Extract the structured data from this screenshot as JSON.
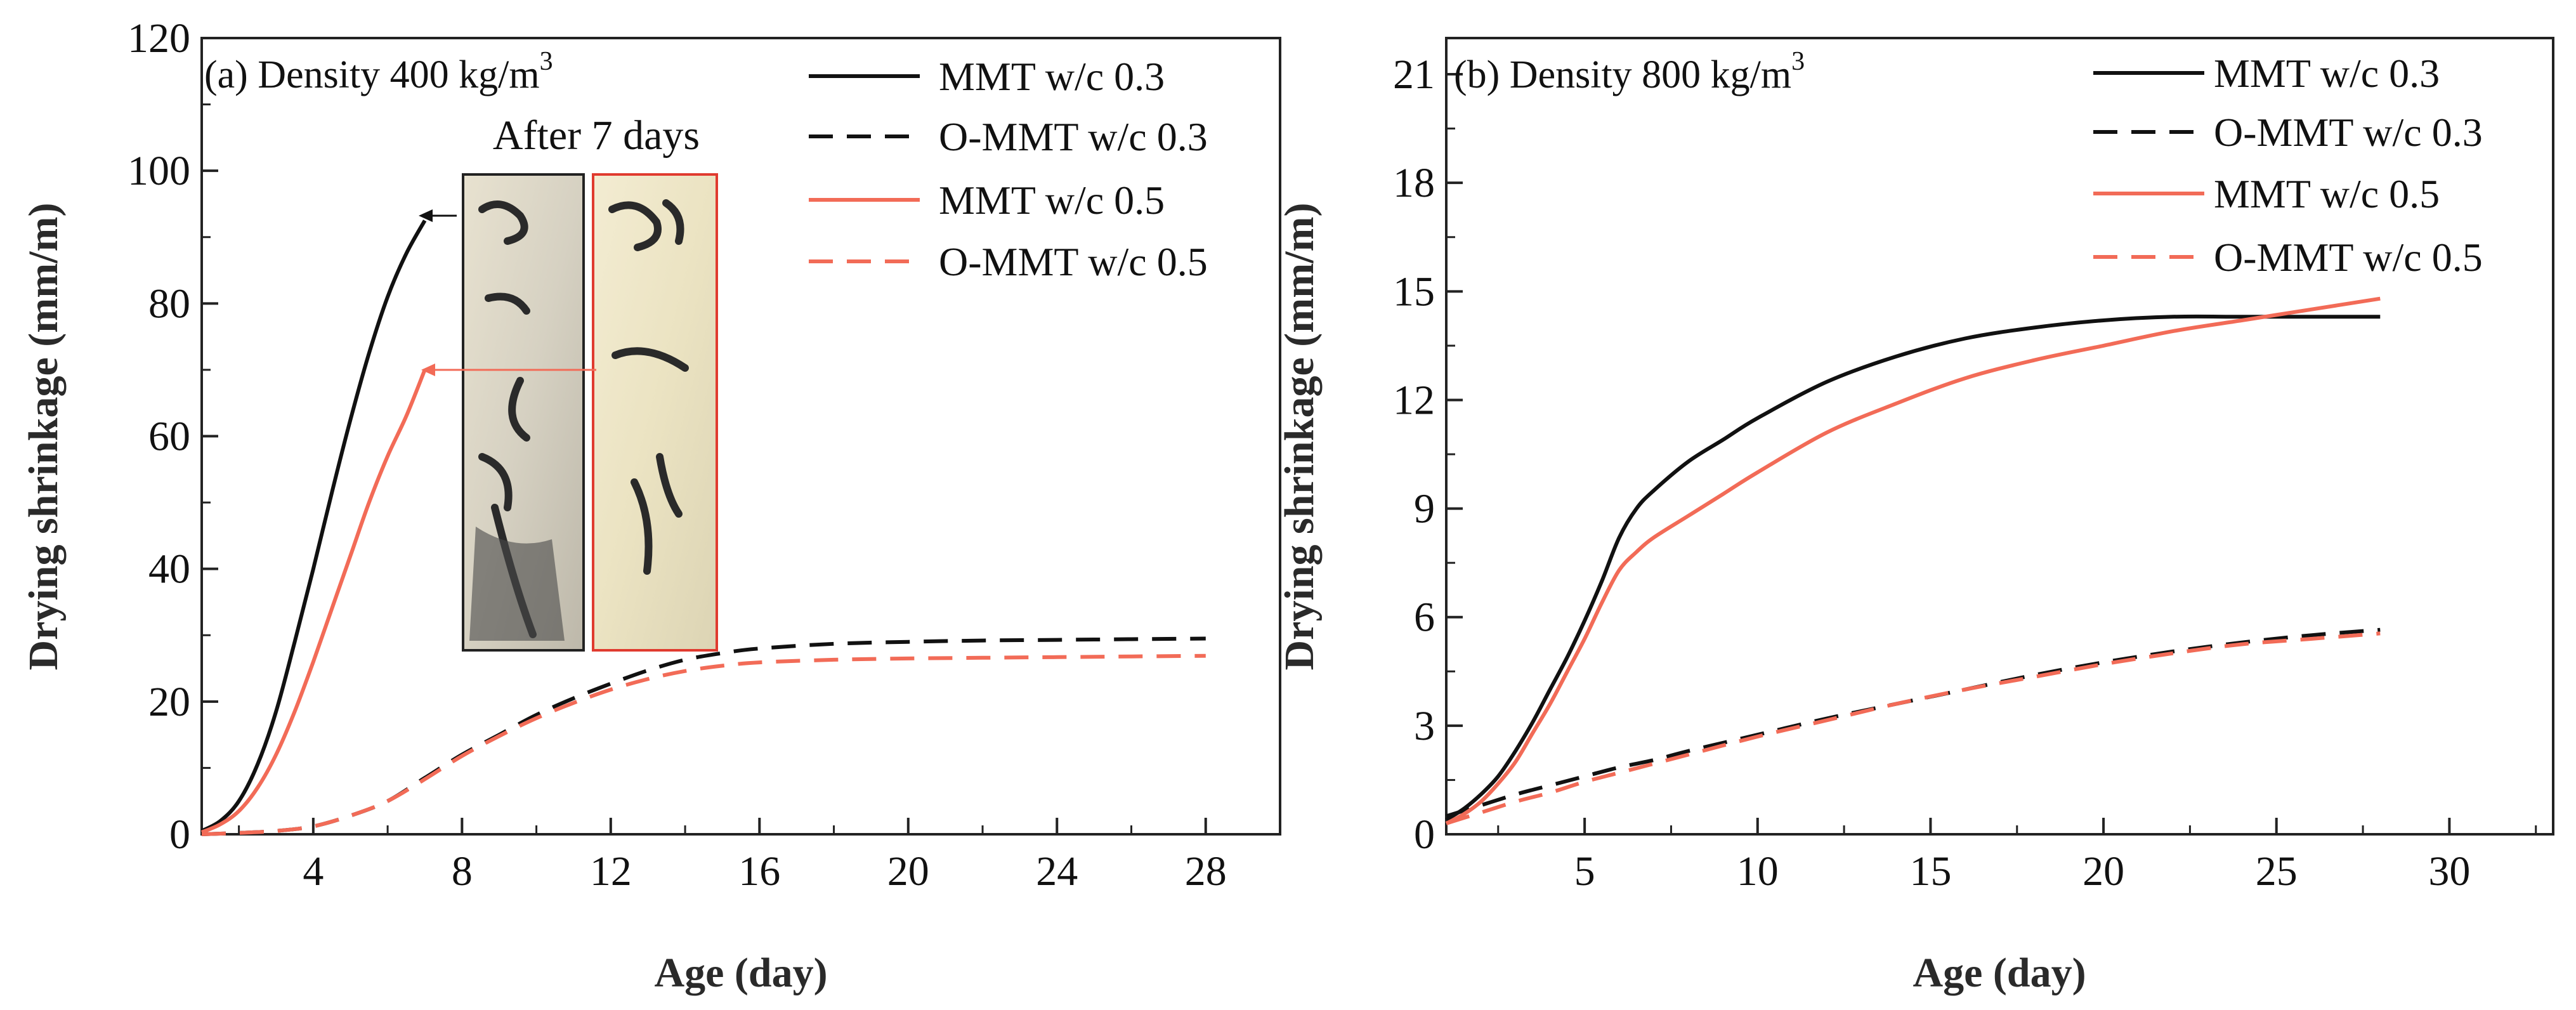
{
  "chart_data": [
    {
      "type": "line",
      "title": "(a) Density 400 kg/m",
      "title_superscript": "3",
      "xlabel": "Age (day)",
      "ylabel": "Drying shrinkage (mm/m)",
      "xlim": [
        1,
        30
      ],
      "ylim": [
        0,
        120
      ],
      "xticks": [
        4,
        8,
        12,
        16,
        20,
        24,
        28
      ],
      "yticks": [
        0,
        20,
        40,
        60,
        80,
        100,
        120
      ],
      "x_tick_labels": [
        "4",
        "8",
        "12",
        "16",
        "20",
        "24",
        "28"
      ],
      "y_tick_labels": [
        "0",
        "20",
        "40",
        "60",
        "80",
        "100",
        "120"
      ],
      "legend_position": "top-right",
      "series": [
        {
          "name": "MMT w/c 0.3",
          "color": "#111111",
          "dash": "solid",
          "x": [
            1,
            1.5,
            2,
            2.5,
            3,
            3.5,
            4,
            4.5,
            5,
            5.5,
            6,
            6.5,
            7
          ],
          "y": [
            0.5,
            2,
            5,
            10.5,
            18.5,
            29,
            40,
            51.5,
            62.5,
            72.5,
            81,
            87.5,
            92.5
          ]
        },
        {
          "name": "O-MMT w/c 0.3",
          "color": "#111111",
          "dash": "dashed",
          "x": [
            1,
            2,
            3,
            4,
            5,
            6,
            7,
            8,
            9,
            10,
            11,
            12,
            13,
            14,
            15,
            16,
            18,
            20,
            22,
            24,
            26,
            28
          ],
          "y": [
            0,
            0.2,
            0.5,
            1.2,
            2.8,
            5,
            8.5,
            12,
            15,
            18,
            20.5,
            22.7,
            24.7,
            26.3,
            27.3,
            28,
            28.7,
            29,
            29.2,
            29.3,
            29.4,
            29.5
          ]
        },
        {
          "name": "MMT w/c 0.5",
          "color": "#f26b57",
          "dash": "solid",
          "x": [
            1,
            1.5,
            2,
            2.5,
            3,
            3.5,
            4,
            4.5,
            5,
            5.5,
            6,
            6.5,
            7
          ],
          "y": [
            0.3,
            1.5,
            3.5,
            7,
            12,
            18.5,
            26,
            34,
            42,
            50,
            57,
            63,
            70
          ]
        },
        {
          "name": "O-MMT w/c 0.5",
          "color": "#f26b57",
          "dash": "dashed",
          "x": [
            1,
            2,
            3,
            4,
            5,
            6,
            7,
            8,
            9,
            10,
            11,
            12,
            13,
            14,
            15,
            16,
            18,
            20,
            22,
            24,
            26,
            28
          ],
          "y": [
            0,
            0.2,
            0.5,
            1.2,
            2.8,
            5,
            8.3,
            11.8,
            14.8,
            17.5,
            19.8,
            21.8,
            23.4,
            24.6,
            25.4,
            25.9,
            26.3,
            26.5,
            26.6,
            26.7,
            26.8,
            26.9
          ]
        }
      ],
      "annotations": [
        {
          "text": "After 7 days",
          "kind": "inset-photo-title"
        },
        {
          "kind": "arrow",
          "from_series": "MMT w/c 0.3",
          "x": 7,
          "y": 92.5,
          "color": "#111111"
        },
        {
          "kind": "arrow",
          "from_series": "MMT w/c 0.5",
          "x": 7,
          "y": 70,
          "color": "#f26b57"
        }
      ]
    },
    {
      "type": "line",
      "title": "(b) Density 800 kg/m",
      "title_superscript": "3",
      "xlabel": "Age (day)",
      "ylabel": "Drying shrinkage (mm/m)",
      "xlim": [
        1,
        33
      ],
      "ylim": [
        0,
        22
      ],
      "xticks": [
        5,
        10,
        15,
        20,
        25,
        30
      ],
      "yticks": [
        0,
        3,
        6,
        9,
        12,
        15,
        18,
        21
      ],
      "x_tick_labels": [
        "5",
        "10",
        "15",
        "20",
        "25",
        "30"
      ],
      "y_tick_labels": [
        "0",
        "3",
        "6",
        "9",
        "12",
        "15",
        "18",
        "21"
      ],
      "legend_position": "top-right",
      "series": [
        {
          "name": "MMT w/c 0.3",
          "color": "#111111",
          "dash": "solid",
          "x": [
            1,
            1.5,
            2,
            2.5,
            3,
            3.5,
            4,
            4.5,
            5,
            5.5,
            6,
            6.5,
            7,
            8,
            9,
            10,
            12,
            14,
            16,
            18,
            20,
            22,
            24,
            26,
            28
          ],
          "y": [
            0.4,
            0.7,
            1.1,
            1.6,
            2.3,
            3.1,
            4,
            4.9,
            5.9,
            7,
            8.2,
            9,
            9.5,
            10.3,
            10.9,
            11.5,
            12.5,
            13.2,
            13.7,
            14,
            14.2,
            14.3,
            14.3,
            14.3,
            14.3
          ]
        },
        {
          "name": "O-MMT w/c 0.3",
          "color": "#111111",
          "dash": "dashed",
          "x": [
            1,
            2,
            3,
            4,
            5,
            6,
            7,
            8,
            10,
            12,
            14,
            16,
            18,
            20,
            22,
            24,
            26,
            28
          ],
          "y": [
            0.5,
            0.8,
            1.1,
            1.35,
            1.6,
            1.85,
            2.05,
            2.3,
            2.75,
            3.2,
            3.6,
            4.0,
            4.4,
            4.75,
            5.05,
            5.3,
            5.5,
            5.65
          ]
        },
        {
          "name": "MMT w/c 0.5",
          "color": "#f26b57",
          "dash": "solid",
          "x": [
            1,
            1.5,
            2,
            2.5,
            3,
            3.5,
            4,
            4.5,
            5,
            5.5,
            6,
            6.5,
            7,
            8,
            9,
            10,
            12,
            14,
            16,
            18,
            20,
            22,
            24,
            26,
            28
          ],
          "y": [
            0.3,
            0.55,
            0.9,
            1.4,
            2,
            2.8,
            3.6,
            4.5,
            5.4,
            6.4,
            7.3,
            7.8,
            8.2,
            8.8,
            9.4,
            10,
            11.1,
            11.9,
            12.6,
            13.1,
            13.5,
            13.9,
            14.2,
            14.5,
            14.8
          ]
        },
        {
          "name": "O-MMT w/c 0.5",
          "color": "#f26b57",
          "dash": "dashed",
          "x": [
            1,
            2,
            3,
            4,
            5,
            6,
            7,
            8,
            10,
            12,
            14,
            16,
            18,
            20,
            22,
            24,
            26,
            28
          ],
          "y": [
            0.3,
            0.6,
            0.9,
            1.15,
            1.45,
            1.7,
            1.95,
            2.2,
            2.7,
            3.15,
            3.6,
            4.0,
            4.35,
            4.7,
            5.0,
            5.25,
            5.4,
            5.55
          ]
        }
      ]
    }
  ]
}
